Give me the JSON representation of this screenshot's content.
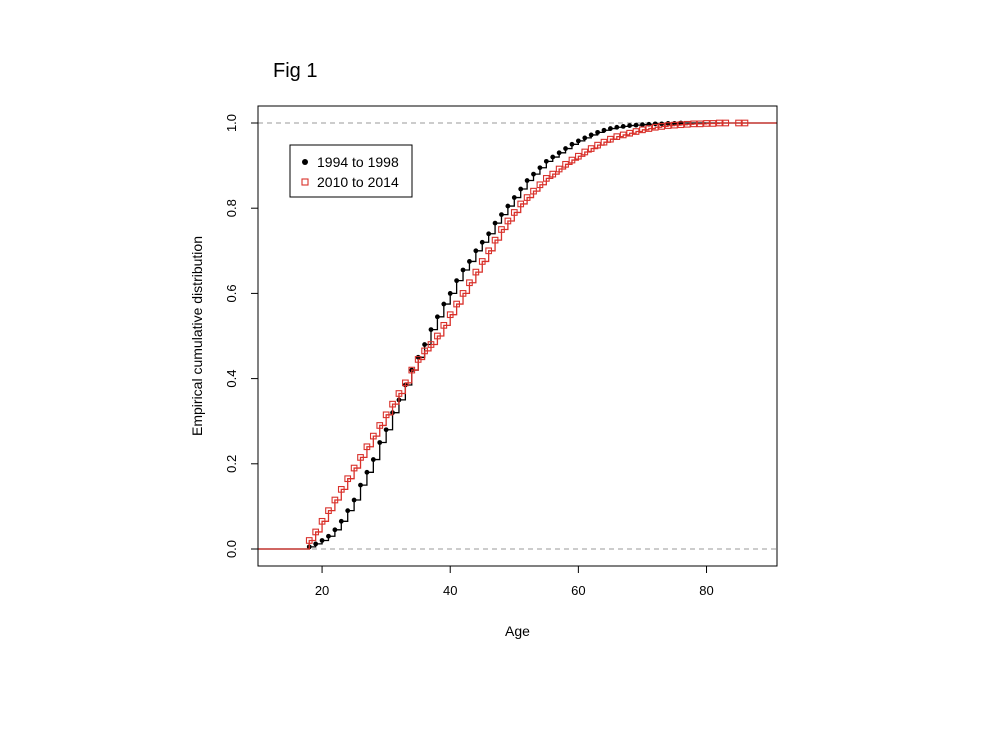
{
  "figure_label": "Fig 1",
  "chart_data": {
    "type": "line",
    "title": "",
    "xlabel": "Age",
    "ylabel": "Empirical cumulative distribution",
    "xlim": [
      10,
      91
    ],
    "ylim": [
      0,
      1
    ],
    "x_ticks": [
      20,
      40,
      60,
      80
    ],
    "y_ticks": [
      0.0,
      0.2,
      0.4,
      0.6,
      0.8,
      1.0
    ],
    "y_tick_labels": [
      "0.0",
      "0.2",
      "0.4",
      "0.6",
      "0.8",
      "1.0"
    ],
    "reference_lines": [
      0.0,
      1.0
    ],
    "legend_position": "top-left",
    "series": [
      {
        "name": "1994 to 1998",
        "color": "#000000",
        "marker": "filled-circle",
        "x": [
          18,
          19,
          20,
          21,
          22,
          23,
          24,
          25,
          26,
          27,
          28,
          29,
          30,
          31,
          32,
          33,
          34,
          35,
          36,
          37,
          38,
          39,
          40,
          41,
          42,
          43,
          44,
          45,
          46,
          47,
          48,
          49,
          50,
          51,
          52,
          53,
          54,
          55,
          56,
          57,
          58,
          59,
          60,
          61,
          62,
          63,
          64,
          65,
          66,
          67,
          68,
          69,
          70,
          71,
          72,
          73,
          74,
          75,
          76
        ],
        "y": [
          0.005,
          0.012,
          0.02,
          0.03,
          0.045,
          0.065,
          0.09,
          0.115,
          0.15,
          0.18,
          0.21,
          0.25,
          0.28,
          0.32,
          0.35,
          0.385,
          0.42,
          0.45,
          0.48,
          0.515,
          0.545,
          0.575,
          0.6,
          0.63,
          0.655,
          0.675,
          0.7,
          0.72,
          0.74,
          0.765,
          0.785,
          0.805,
          0.825,
          0.845,
          0.865,
          0.88,
          0.895,
          0.91,
          0.92,
          0.93,
          0.94,
          0.95,
          0.958,
          0.965,
          0.972,
          0.978,
          0.983,
          0.987,
          0.99,
          0.992,
          0.994,
          0.995,
          0.996,
          0.997,
          0.998,
          0.998,
          0.999,
          0.999,
          1.0
        ]
      },
      {
        "name": "2010 to 2014",
        "color": "#d9312b",
        "marker": "open-square",
        "x": [
          18,
          19,
          20,
          21,
          22,
          23,
          24,
          25,
          26,
          27,
          28,
          29,
          30,
          31,
          32,
          33,
          34,
          35,
          36,
          37,
          38,
          39,
          40,
          41,
          42,
          43,
          44,
          45,
          46,
          47,
          48,
          49,
          50,
          51,
          52,
          53,
          54,
          55,
          56,
          57,
          58,
          59,
          60,
          61,
          62,
          63,
          64,
          65,
          66,
          67,
          68,
          69,
          70,
          71,
          72,
          73,
          74,
          75,
          76,
          77,
          78,
          79,
          80,
          81,
          82,
          83,
          85,
          86
        ],
        "y": [
          0.02,
          0.04,
          0.065,
          0.09,
          0.115,
          0.14,
          0.165,
          0.19,
          0.215,
          0.24,
          0.265,
          0.29,
          0.315,
          0.34,
          0.365,
          0.39,
          0.42,
          0.445,
          0.465,
          0.48,
          0.5,
          0.525,
          0.55,
          0.575,
          0.6,
          0.625,
          0.65,
          0.675,
          0.7,
          0.725,
          0.75,
          0.77,
          0.79,
          0.81,
          0.825,
          0.84,
          0.855,
          0.87,
          0.88,
          0.892,
          0.903,
          0.913,
          0.922,
          0.932,
          0.94,
          0.948,
          0.955,
          0.962,
          0.968,
          0.972,
          0.976,
          0.98,
          0.984,
          0.987,
          0.99,
          0.992,
          0.994,
          0.995,
          0.996,
          0.997,
          0.998,
          0.998,
          0.999,
          0.999,
          1.0,
          1.0,
          1.0,
          1.0
        ]
      }
    ]
  }
}
